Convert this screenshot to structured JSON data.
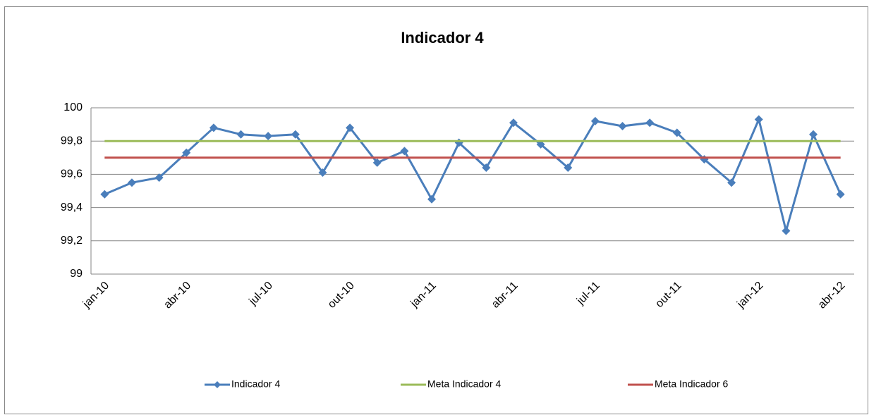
{
  "chart_data": {
    "type": "line",
    "title": "Indicador 4",
    "categories": [
      "jan-10",
      null,
      null,
      "abr-10",
      null,
      null,
      "jul-10",
      null,
      null,
      "out-10",
      null,
      null,
      "jan-11",
      null,
      null,
      "abr-11",
      null,
      null,
      "jul-11",
      null,
      null,
      "out-11",
      null,
      null,
      "jan-12",
      null,
      null,
      "abr-12"
    ],
    "series": [
      {
        "name": "Indicador 4",
        "color": "#4a7ebb",
        "marker": "diamond",
        "values": [
          99.48,
          99.55,
          99.58,
          99.73,
          99.88,
          99.84,
          99.83,
          99.84,
          99.61,
          99.88,
          99.67,
          99.74,
          99.45,
          99.79,
          99.64,
          99.91,
          99.78,
          99.64,
          99.92,
          99.89,
          99.91,
          99.85,
          99.69,
          99.55,
          99.93,
          99.26,
          99.84,
          99.48
        ]
      },
      {
        "name": "Meta Indicador 4",
        "color": "#9bbb59",
        "values": [
          99.8,
          99.8,
          99.8,
          99.8,
          99.8,
          99.8,
          99.8,
          99.8,
          99.8,
          99.8,
          99.8,
          99.8,
          99.8,
          99.8,
          99.8,
          99.8,
          99.8,
          99.8,
          99.8,
          99.8,
          99.8,
          99.8,
          99.8,
          99.8,
          99.8,
          99.8,
          99.8,
          99.8
        ]
      },
      {
        "name": "Meta Indicador 6",
        "color": "#c0504d",
        "values": [
          99.7,
          99.7,
          99.7,
          99.7,
          99.7,
          99.7,
          99.7,
          99.7,
          99.7,
          99.7,
          99.7,
          99.7,
          99.7,
          99.7,
          99.7,
          99.7,
          99.7,
          99.7,
          99.7,
          99.7,
          99.7,
          99.7,
          99.7,
          99.7,
          99.7,
          99.7,
          99.7,
          99.7
        ]
      }
    ],
    "ylim": [
      99,
      100
    ],
    "yticks": [
      99,
      {
        "value": 99.2,
        "label": "99,2"
      },
      {
        "value": 99.4,
        "label": "99,4"
      },
      {
        "value": 99.6,
        "label": "99,6"
      },
      {
        "value": 99.8,
        "label": "99,8"
      },
      100
    ],
    "grid": true,
    "legend": "bottom"
  }
}
